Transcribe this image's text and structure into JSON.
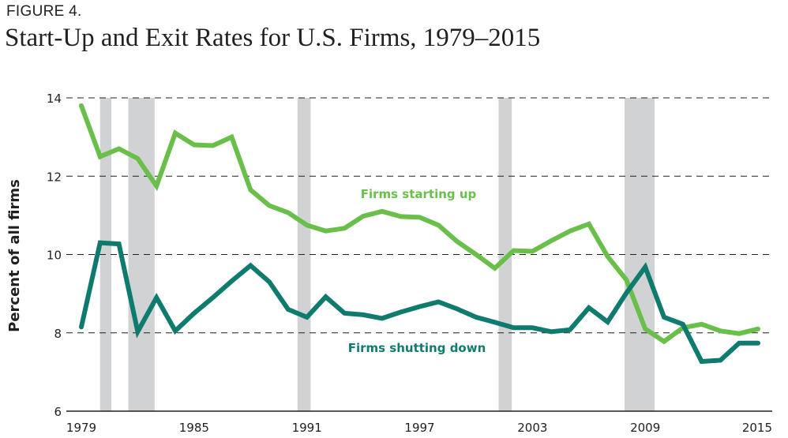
{
  "figure_label": "FIGURE 4.",
  "title": "Start-Up and Exit Rates for U.S. Firms, 1979–2015",
  "chart_data": {
    "type": "line",
    "title": "Start-Up and Exit Rates for U.S. Firms, 1979–2015",
    "xlabel": "",
    "ylabel": "Percent of all firms",
    "ylim": [
      6,
      14
    ],
    "xlim": [
      1979,
      2015
    ],
    "yticks": [
      6,
      8,
      10,
      12,
      14
    ],
    "xticks": [
      1979,
      1985,
      1991,
      1997,
      2003,
      2009,
      2015
    ],
    "grid": "horizontal dashed",
    "x": [
      1979,
      1980,
      1981,
      1982,
      1983,
      1984,
      1985,
      1986,
      1987,
      1988,
      1989,
      1990,
      1991,
      1992,
      1993,
      1994,
      1995,
      1996,
      1997,
      1998,
      1999,
      2000,
      2001,
      2002,
      2003,
      2004,
      2005,
      2006,
      2007,
      2008,
      2009,
      2010,
      2011,
      2012,
      2013,
      2014,
      2015
    ],
    "series": [
      {
        "name": "Firms starting up",
        "color": "#6abf4b",
        "values": [
          13.8,
          12.5,
          12.7,
          12.45,
          11.75,
          13.1,
          12.8,
          12.78,
          13.0,
          11.65,
          11.25,
          11.07,
          10.75,
          10.6,
          10.67,
          10.98,
          11.1,
          10.97,
          10.95,
          10.75,
          10.33,
          10.0,
          9.65,
          10.1,
          10.08,
          10.35,
          10.6,
          10.78,
          9.95,
          9.35,
          8.1,
          7.78,
          8.13,
          8.22,
          8.05,
          7.98,
          8.1
        ]
      },
      {
        "name": "Firms shutting down",
        "color": "#0f7b6f",
        "values": [
          8.15,
          10.3,
          10.27,
          8.03,
          8.9,
          8.05,
          8.5,
          8.9,
          9.32,
          9.72,
          9.3,
          8.6,
          8.4,
          8.92,
          8.5,
          8.46,
          8.37,
          8.53,
          8.67,
          8.79,
          8.61,
          8.4,
          8.27,
          8.13,
          8.13,
          8.03,
          8.08,
          8.64,
          8.28,
          9.02,
          9.68,
          8.4,
          8.22,
          7.27,
          7.3,
          7.74,
          7.74
        ]
      }
    ],
    "recessions": [
      {
        "start": 1980.0,
        "end": 1980.6
      },
      {
        "start": 1981.5,
        "end": 1982.9
      },
      {
        "start": 1990.5,
        "end": 1991.2
      },
      {
        "start": 2001.2,
        "end": 2001.9
      },
      {
        "start": 2007.9,
        "end": 2009.5
      }
    ],
    "recession_color": "#d0d2d3",
    "annotations": [
      {
        "text": "Firms starting up",
        "series": 0
      },
      {
        "text": "Firms shutting down",
        "series": 1
      }
    ]
  }
}
